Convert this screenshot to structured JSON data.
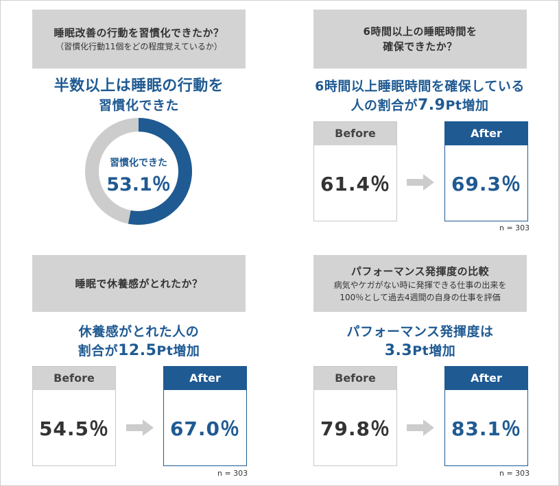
{
  "panels": {
    "p1": {
      "question_title": "睡眠改善の行動を習慣化できたか？",
      "question_sub": "（習慣化行動11個をどの程度覚えているか）",
      "headline_line1": "半数以上は睡眠の行動を",
      "headline_line2": "習慣化できた",
      "donut_label": "習慣化できた",
      "donut_value": "53.1％"
    },
    "p2": {
      "question_line1": "6時間以上の睡眠時間を",
      "question_line2": "確保できたか？",
      "headline_line1": "6時間以上睡眠時間を確保している",
      "headline_line2_pre": "人の割合が",
      "headline_line2_big": "7.9",
      "headline_line2_post": "Pt増加",
      "before_label": "Before",
      "after_label": "After",
      "before_value": "61.4％",
      "after_value": "69.3％",
      "n_label": "n = 303"
    },
    "p3": {
      "question_title": "睡眠で休養感がとれたか？",
      "headline_line1": "休養感がとれた人の",
      "headline_line2_pre": "割合が",
      "headline_line2_big": "12.5",
      "headline_line2_post": "Pt増加",
      "before_label": "Before",
      "after_label": "After",
      "before_value": "54.5％",
      "after_value": "67.0％",
      "n_label": "n = 303"
    },
    "p4": {
      "question_title": "パフォーマンス発揮度の比較",
      "question_sub1": "病気やケガがない時に発揮できる仕事の出来を",
      "question_sub2": "100％として過去4週間の自身の仕事を評価",
      "headline_line1": "パフォーマンス発揮度は",
      "headline_line2_big": "3.3",
      "headline_line2_post": "Pt増加",
      "before_label": "Before",
      "after_label": "After",
      "before_value": "79.8％",
      "after_value": "83.1％",
      "n_label": "n = 303"
    }
  },
  "colors": {
    "accent": "#1f5a92",
    "gray_box": "#d3d3d3",
    "donut_rest": "#cccccc",
    "arrow": "#cccccc"
  },
  "chart_data": [
    {
      "type": "pie",
      "categories": [
        "習慣化できた",
        ""
      ],
      "values": [
        53.1,
        46.9
      ]
    },
    {
      "type": "table",
      "categories": [
        "Before",
        "After"
      ],
      "values": [
        61.4,
        69.3
      ]
    },
    {
      "type": "table",
      "categories": [
        "Before",
        "After"
      ],
      "values": [
        54.5,
        67.0
      ]
    },
    {
      "type": "table",
      "categories": [
        "Before",
        "After"
      ],
      "values": [
        79.8,
        83.1
      ]
    }
  ]
}
